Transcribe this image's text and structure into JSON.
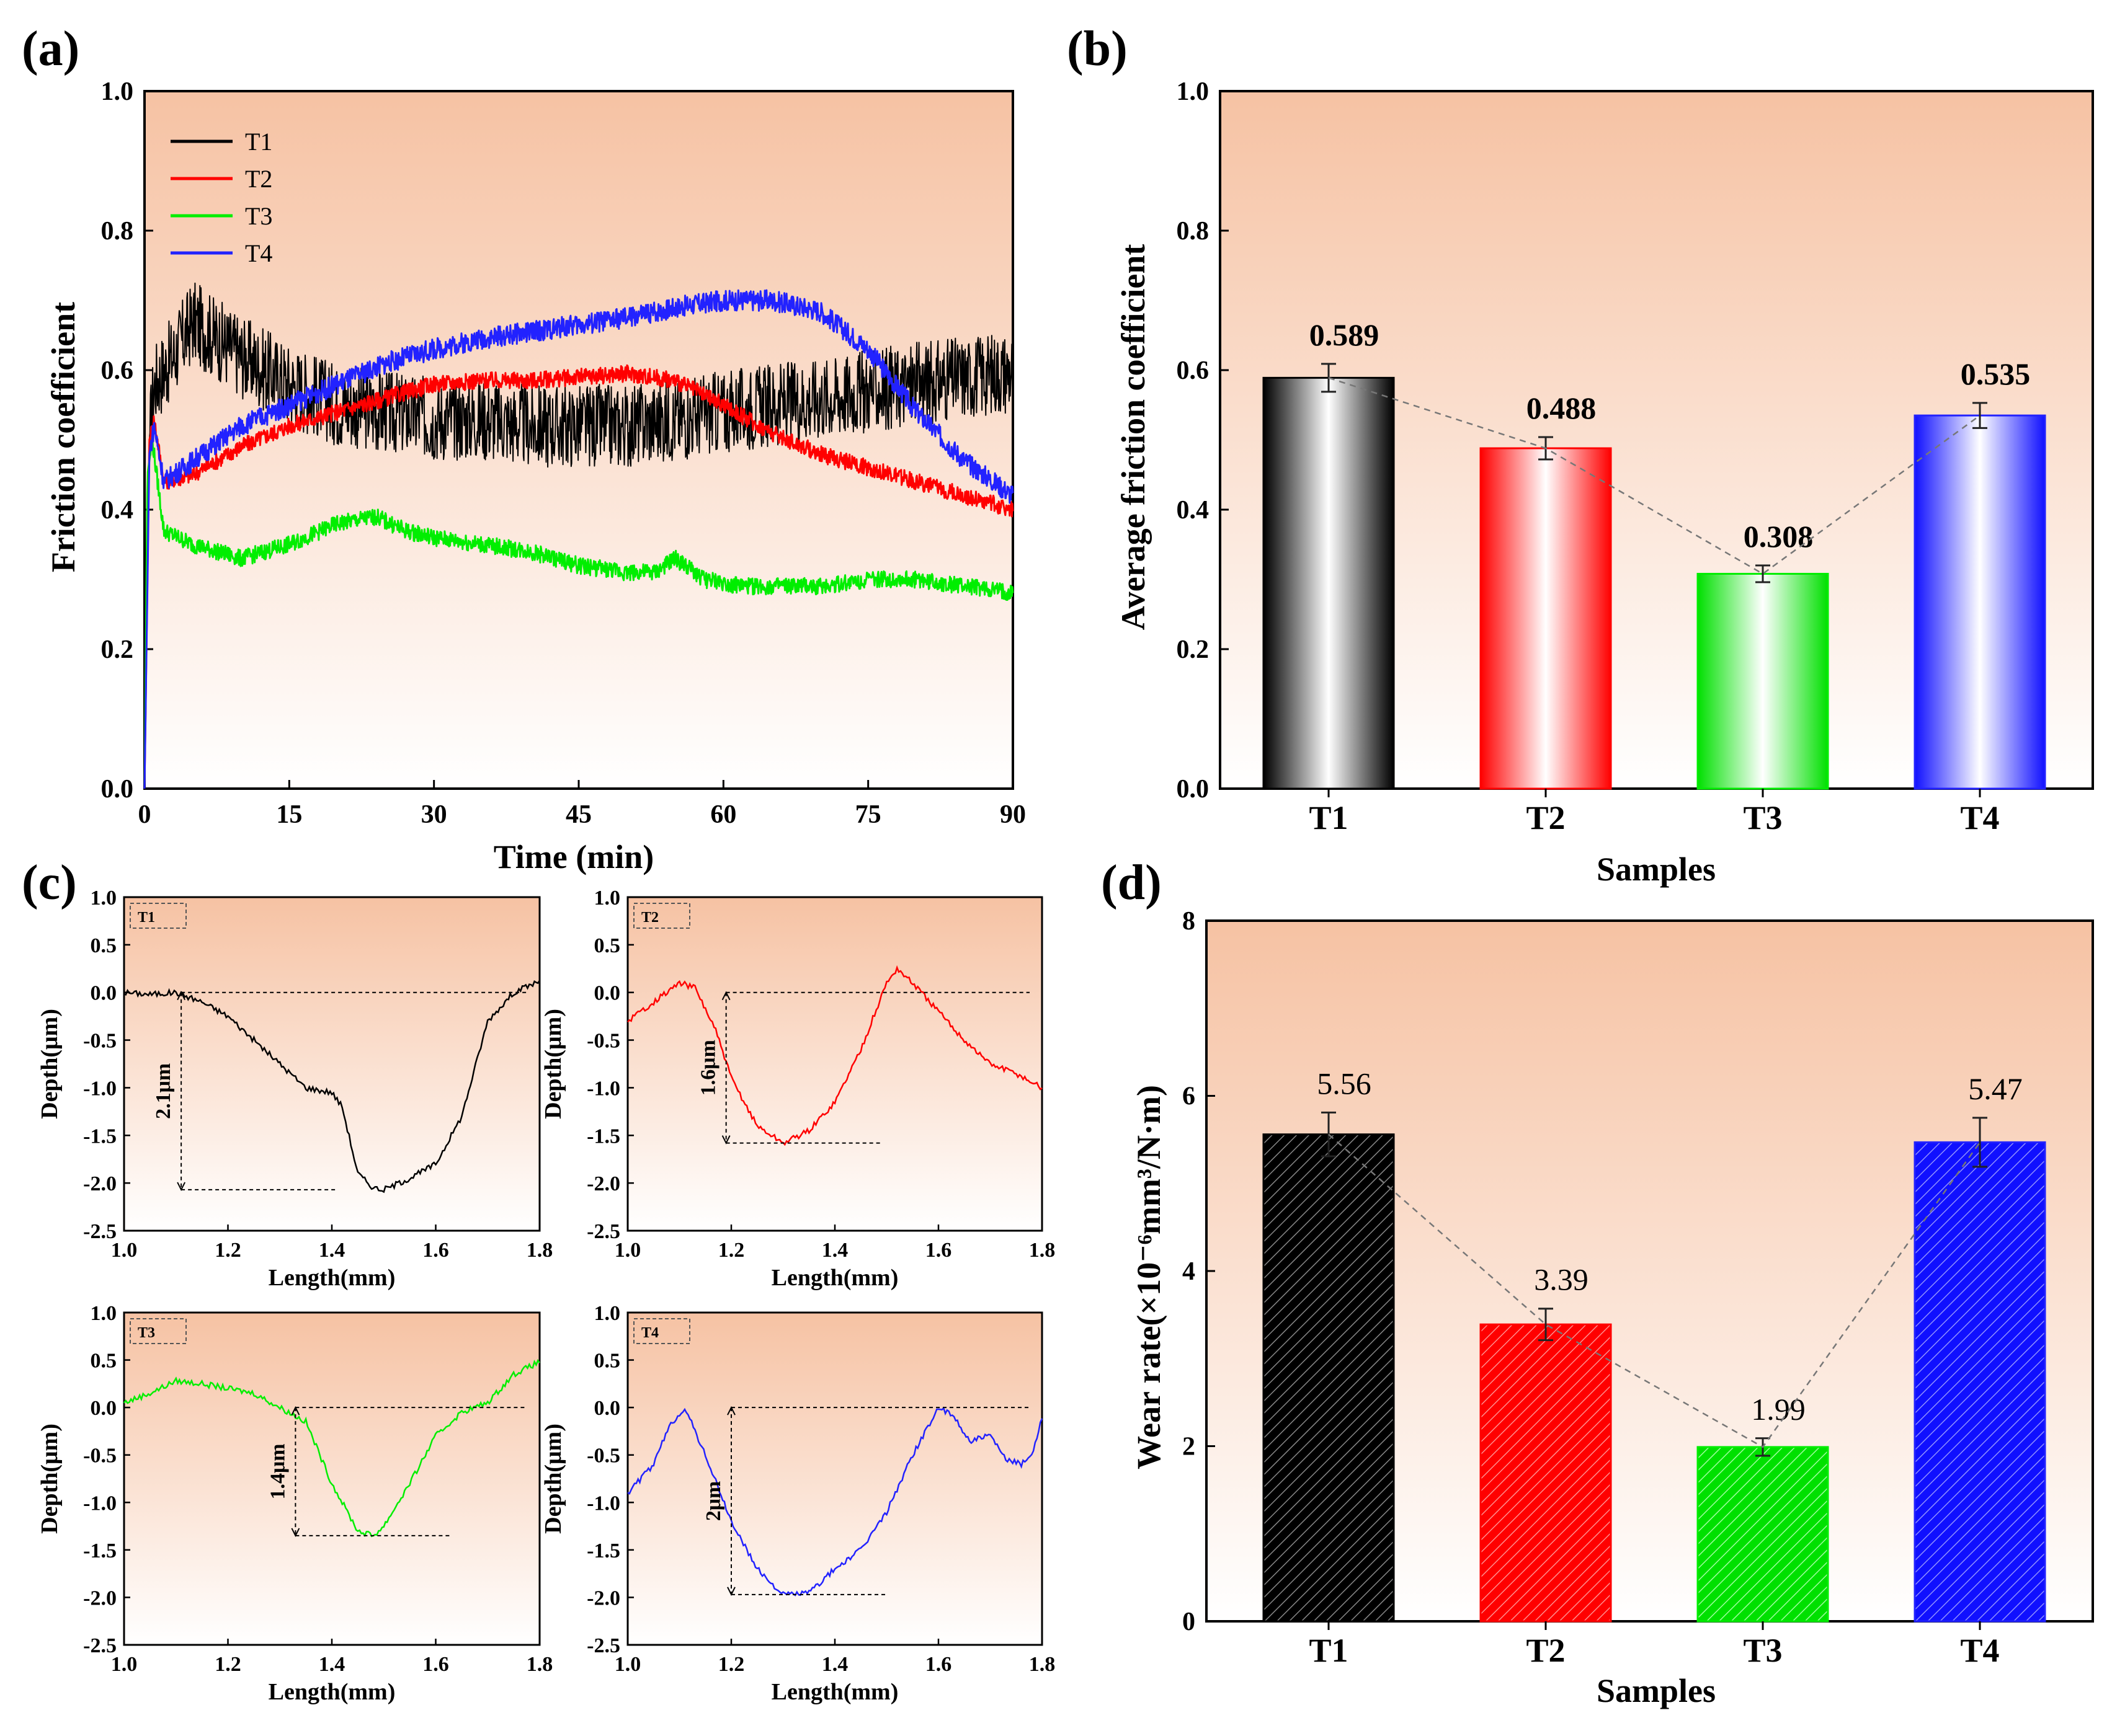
{
  "figure": {
    "panel_labels": [
      "(a)",
      "(b)",
      "(c)",
      "(d)"
    ],
    "colors": {
      "T1": "#000000",
      "T2": "#ff0000",
      "T3": "#00ee00",
      "T4": "#2222ff",
      "bg_top": "#f6c4a6",
      "bg_bottom": "#ffffff"
    }
  },
  "chart_data": [
    {
      "id": "a",
      "type": "line",
      "title": "",
      "xlabel": "Time (min)",
      "ylabel": "Friction coefficient",
      "xlim": [
        0,
        90
      ],
      "ylim": [
        0,
        1.0
      ],
      "xticks": [
        0,
        15,
        30,
        45,
        60,
        75,
        90
      ],
      "yticks": [
        0.0,
        0.2,
        0.4,
        0.6,
        0.8,
        1.0
      ],
      "legend": [
        "T1",
        "T2",
        "T3",
        "T4"
      ],
      "legend_position": "top-left",
      "series": [
        {
          "name": "T1",
          "color": "#000000",
          "noise": 0.06,
          "x": [
            0,
            0.5,
            1,
            3,
            5,
            7,
            10,
            15,
            20,
            25,
            30,
            35,
            40,
            45,
            50,
            55,
            60,
            65,
            70,
            75,
            80,
            85,
            90
          ],
          "y": [
            0.0,
            0.5,
            0.58,
            0.62,
            0.67,
            0.65,
            0.62,
            0.58,
            0.55,
            0.54,
            0.53,
            0.53,
            0.52,
            0.52,
            0.52,
            0.53,
            0.54,
            0.55,
            0.56,
            0.57,
            0.58,
            0.59,
            0.6
          ]
        },
        {
          "name": "T2",
          "color": "#ff0000",
          "noise": 0.012,
          "x": [
            0,
            0.5,
            1,
            2,
            5,
            10,
            15,
            20,
            25,
            30,
            35,
            40,
            45,
            50,
            55,
            60,
            65,
            70,
            75,
            80,
            85,
            90
          ],
          "y": [
            0.0,
            0.5,
            0.53,
            0.44,
            0.45,
            0.49,
            0.52,
            0.54,
            0.56,
            0.58,
            0.585,
            0.585,
            0.59,
            0.595,
            0.585,
            0.55,
            0.51,
            0.48,
            0.46,
            0.44,
            0.42,
            0.4
          ]
        },
        {
          "name": "T3",
          "color": "#00ee00",
          "noise": 0.012,
          "x": [
            0,
            0.3,
            0.8,
            2,
            5,
            10,
            15,
            20,
            24,
            27,
            30,
            35,
            40,
            45,
            50,
            53,
            55,
            58,
            62,
            65,
            70,
            75,
            80,
            85,
            90
          ],
          "y": [
            0.0,
            0.45,
            0.5,
            0.37,
            0.35,
            0.33,
            0.35,
            0.38,
            0.39,
            0.37,
            0.36,
            0.35,
            0.34,
            0.32,
            0.31,
            0.31,
            0.33,
            0.3,
            0.29,
            0.29,
            0.29,
            0.3,
            0.3,
            0.29,
            0.28
          ]
        },
        {
          "name": "T4",
          "color": "#2222ff",
          "noise": 0.015,
          "x": [
            0,
            0.5,
            1,
            2,
            5,
            10,
            15,
            20,
            25,
            30,
            35,
            40,
            45,
            50,
            55,
            60,
            65,
            70,
            75,
            80,
            85,
            90
          ],
          "y": [
            0.0,
            0.48,
            0.52,
            0.44,
            0.47,
            0.52,
            0.55,
            0.58,
            0.61,
            0.63,
            0.645,
            0.655,
            0.665,
            0.675,
            0.69,
            0.7,
            0.7,
            0.685,
            0.63,
            0.54,
            0.47,
            0.42
          ]
        }
      ]
    },
    {
      "id": "b",
      "type": "bar",
      "xlabel": "Samples",
      "ylabel": "Average friction coefficient",
      "categories": [
        "T1",
        "T2",
        "T3",
        "T4"
      ],
      "values": [
        0.589,
        0.488,
        0.308,
        0.535
      ],
      "value_labels": [
        "0.589",
        "0.488",
        "0.308",
        "0.535"
      ],
      "errors": [
        0.02,
        0.016,
        0.012,
        0.018
      ],
      "ylim": [
        0,
        1.0
      ],
      "yticks": [
        0.0,
        0.2,
        0.4,
        0.6,
        0.8,
        1.0
      ],
      "trend_line": true
    },
    {
      "id": "c",
      "type": "line",
      "xlabel": "Length(mm)",
      "ylabel": "Depth(μm)",
      "xlim": [
        1.0,
        1.8
      ],
      "ylim": [
        -2.5,
        1.0
      ],
      "xticks": [
        1.0,
        1.2,
        1.4,
        1.6,
        1.8
      ],
      "yticks": [
        1.0,
        0.5,
        0.0,
        -0.5,
        -1.0,
        -1.5,
        -2.0,
        -2.5
      ],
      "subplots": [
        {
          "name": "T1",
          "color": "#000000",
          "annotation": "2.1μm",
          "depth_x": 1.11,
          "depth_top": 0.0,
          "depth_bottom": -2.07,
          "x": [
            1.0,
            1.05,
            1.1,
            1.15,
            1.2,
            1.25,
            1.3,
            1.35,
            1.4,
            1.42,
            1.45,
            1.48,
            1.5,
            1.55,
            1.6,
            1.65,
            1.7,
            1.75,
            1.8
          ],
          "y": [
            0.0,
            -0.02,
            0.0,
            -0.1,
            -0.25,
            -0.5,
            -0.75,
            -1.0,
            -1.05,
            -1.2,
            -1.9,
            -2.05,
            -2.07,
            -1.95,
            -1.8,
            -1.3,
            -0.3,
            0.0,
            0.12
          ]
        },
        {
          "name": "T2",
          "color": "#ff0000",
          "annotation": "1.6μm",
          "depth_x": 1.19,
          "depth_top": 0.0,
          "depth_bottom": -1.58,
          "x": [
            1.0,
            1.05,
            1.1,
            1.13,
            1.17,
            1.2,
            1.25,
            1.3,
            1.35,
            1.4,
            1.45,
            1.5,
            1.52,
            1.55,
            1.6,
            1.65,
            1.7,
            1.75,
            1.8
          ],
          "y": [
            -0.3,
            -0.1,
            0.1,
            0.05,
            -0.4,
            -0.9,
            -1.4,
            -1.58,
            -1.45,
            -1.15,
            -0.6,
            0.1,
            0.25,
            0.1,
            -0.2,
            -0.5,
            -0.75,
            -0.85,
            -1.0
          ]
        },
        {
          "name": "T3",
          "color": "#00ee00",
          "annotation": "1.4μm",
          "depth_x": 1.33,
          "depth_top": 0.0,
          "depth_bottom": -1.35,
          "x": [
            1.0,
            1.05,
            1.1,
            1.15,
            1.2,
            1.25,
            1.3,
            1.35,
            1.4,
            1.45,
            1.48,
            1.5,
            1.55,
            1.6,
            1.65,
            1.7,
            1.75,
            1.8
          ],
          "y": [
            0.05,
            0.15,
            0.28,
            0.25,
            0.2,
            0.15,
            0.0,
            -0.15,
            -0.8,
            -1.3,
            -1.35,
            -1.25,
            -0.8,
            -0.3,
            -0.05,
            0.05,
            0.35,
            0.48
          ]
        },
        {
          "name": "T4",
          "color": "#2222ff",
          "annotation": "2μm",
          "depth_x": 1.2,
          "depth_top": 0.0,
          "depth_bottom": -1.97,
          "x": [
            1.0,
            1.05,
            1.08,
            1.11,
            1.15,
            1.2,
            1.25,
            1.3,
            1.35,
            1.4,
            1.45,
            1.5,
            1.55,
            1.6,
            1.63,
            1.66,
            1.7,
            1.73,
            1.76,
            1.78,
            1.8
          ],
          "y": [
            -0.9,
            -0.6,
            -0.2,
            0.0,
            -0.5,
            -1.2,
            -1.7,
            -1.97,
            -1.95,
            -1.7,
            -1.5,
            -1.1,
            -0.5,
            0.0,
            -0.1,
            -0.35,
            -0.3,
            -0.55,
            -0.6,
            -0.5,
            -0.1
          ]
        }
      ]
    },
    {
      "id": "d",
      "type": "bar",
      "xlabel": "Samples",
      "ylabel": "Wear rate(×10⁻⁶mm³/N·m)",
      "categories": [
        "T1",
        "T2",
        "T3",
        "T4"
      ],
      "values": [
        5.56,
        3.39,
        1.99,
        5.47
      ],
      "value_labels": [
        "5.56",
        "3.39",
        "1.99",
        "5.47"
      ],
      "errors": [
        0.25,
        0.18,
        0.1,
        0.28
      ],
      "ylim": [
        0,
        8
      ],
      "yticks": [
        0,
        2,
        4,
        6,
        8
      ],
      "trend_line": true,
      "hatched": true
    }
  ]
}
